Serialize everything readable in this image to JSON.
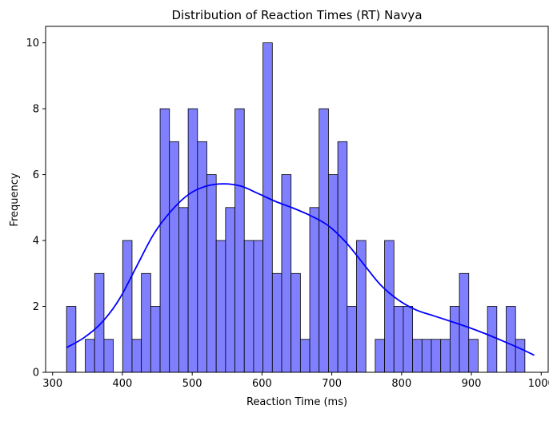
{
  "chart_data": {
    "type": "bar",
    "title": "Distribution of Reaction Times (RT) Navya",
    "xlabel": "Reaction Time (ms)",
    "ylabel": "Frequency",
    "xlim": [
      290,
      1010
    ],
    "ylim": [
      0,
      10.5
    ],
    "xticks": [
      300,
      400,
      500,
      600,
      700,
      800,
      900,
      1000
    ],
    "yticks": [
      0,
      2,
      4,
      6,
      8,
      10
    ],
    "bin_start": 320,
    "bin_width": 13.4,
    "values": [
      2,
      0,
      1,
      3,
      1,
      0,
      4,
      1,
      3,
      2,
      8,
      7,
      5,
      8,
      7,
      6,
      4,
      5,
      8,
      4,
      4,
      10,
      3,
      6,
      3,
      1,
      5,
      8,
      6,
      7,
      2,
      4,
      0,
      1,
      4,
      2,
      2,
      1,
      1,
      1,
      1,
      2,
      3,
      1,
      0,
      2,
      0,
      2,
      1
    ],
    "kde": {
      "x": [
        320,
        345,
        370,
        395,
        420,
        445,
        470,
        495,
        520,
        545,
        570,
        595,
        620,
        645,
        670,
        695,
        720,
        745,
        770,
        795,
        820,
        845,
        870,
        895,
        920,
        945,
        970,
        990
      ],
      "y": [
        0.75,
        1.05,
        1.5,
        2.2,
        3.2,
        4.2,
        4.9,
        5.4,
        5.65,
        5.72,
        5.65,
        5.42,
        5.18,
        4.98,
        4.75,
        4.45,
        3.95,
        3.3,
        2.65,
        2.2,
        1.9,
        1.72,
        1.55,
        1.37,
        1.17,
        0.95,
        0.72,
        0.52
      ]
    },
    "colors": {
      "bar_fill": "#8080ff",
      "bar_edge": "#000000",
      "kde_line": "#0000ff"
    },
    "grid": false,
    "legend": "none"
  }
}
